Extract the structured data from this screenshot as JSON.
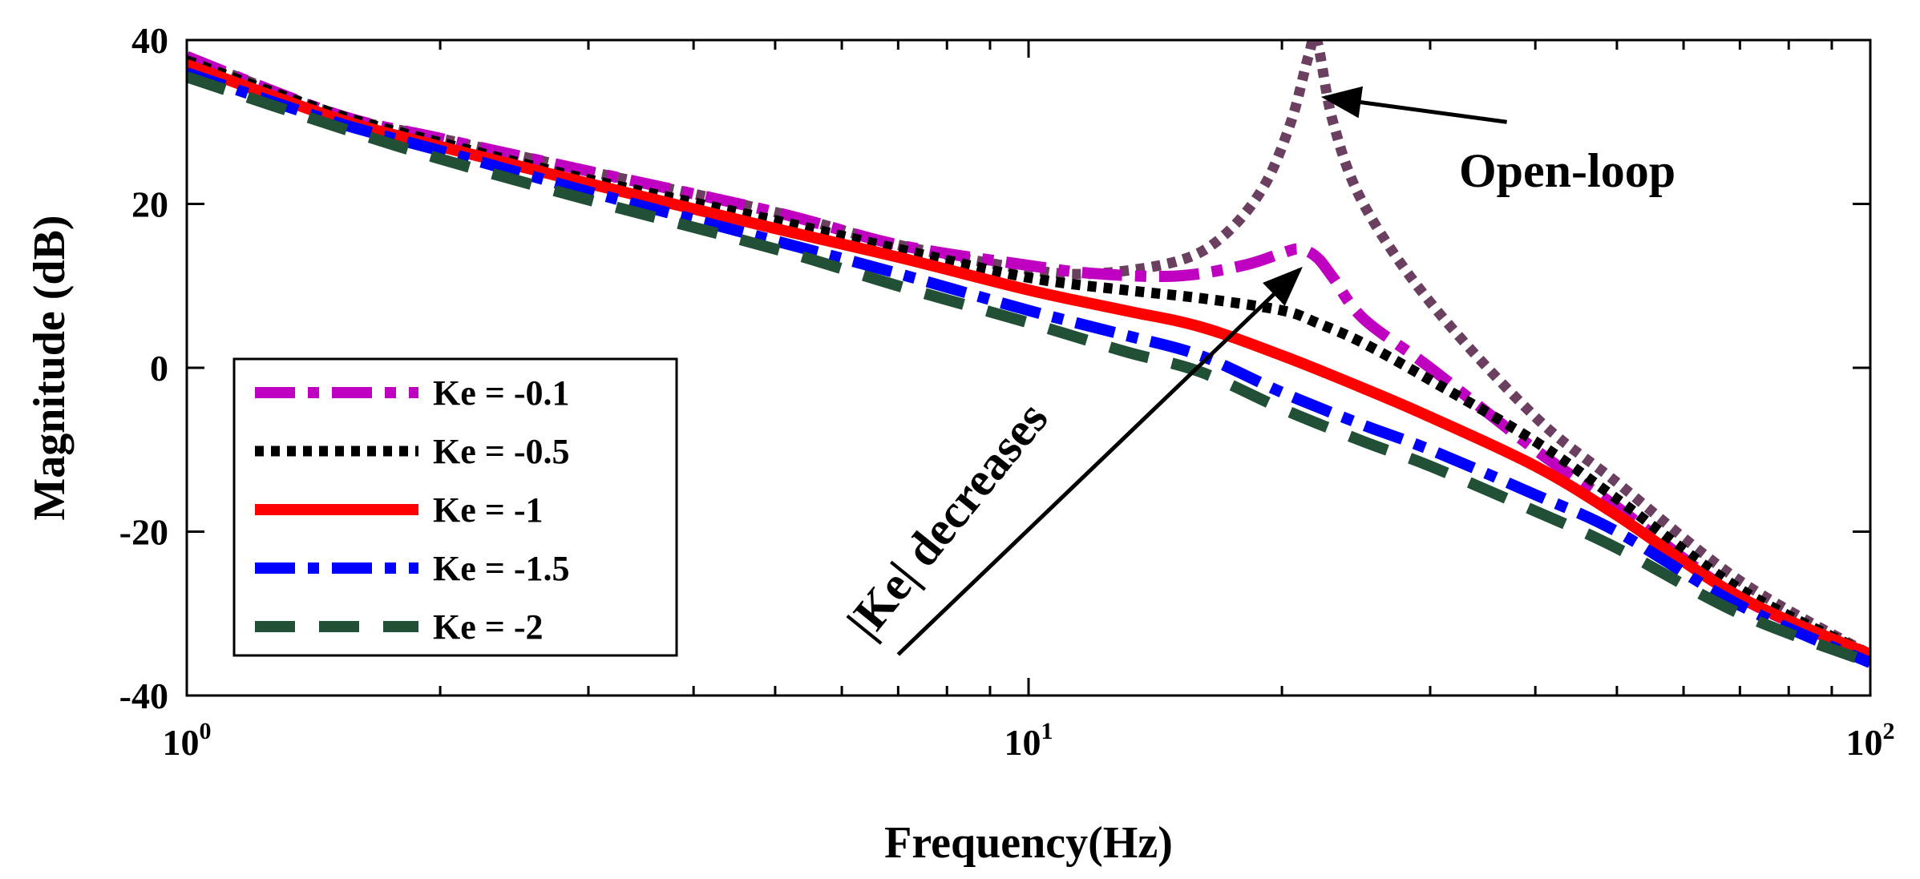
{
  "chart_data": {
    "type": "line",
    "xscale": "log",
    "xlabel": "Frequency(Hz)",
    "ylabel": "Magnitude (dB)",
    "xlim": [
      1,
      100
    ],
    "ylim": [
      -40,
      40
    ],
    "x_ticks": [
      {
        "value": 1,
        "base": "10",
        "exp": "0"
      },
      {
        "value": 10,
        "base": "10",
        "exp": "1"
      },
      {
        "value": 100,
        "base": "10",
        "exp": "2"
      }
    ],
    "y_ticks": [
      {
        "value": 40,
        "label": "40"
      },
      {
        "value": 20,
        "label": "20"
      },
      {
        "value": 0,
        "label": "0"
      },
      {
        "value": -20,
        "label": "-20"
      },
      {
        "value": -40,
        "label": "-40"
      }
    ],
    "series": [
      {
        "name": "Open-loop",
        "in_legend": false,
        "color": "#6b3f5f",
        "style": "dotted",
        "x": [
          1,
          1.5,
          2,
          3,
          5,
          7,
          10,
          12,
          15,
          17,
          19,
          20.5,
          21.5,
          22,
          23,
          25,
          30,
          40,
          50,
          70,
          100
        ],
        "y": [
          38,
          31,
          28,
          24,
          19,
          15,
          12,
          11.5,
          13,
          16,
          22,
          30,
          38,
          40,
          30,
          20,
          8,
          -6,
          -14,
          -26,
          -35
        ]
      },
      {
        "name": "Ke = -0.1",
        "in_legend": true,
        "color": "#c000c0",
        "style": "dashdot",
        "x": [
          1,
          1.5,
          2,
          3,
          5,
          7,
          10,
          12,
          15,
          18,
          20,
          21,
          22,
          23,
          25,
          30,
          40,
          50,
          70,
          100
        ],
        "y": [
          38,
          31,
          28,
          24,
          19,
          15,
          12.5,
          11.5,
          11.2,
          12.5,
          14,
          14.5,
          13.5,
          11,
          6,
          0,
          -10,
          -17,
          -28,
          -35
        ]
      },
      {
        "name": "Ke = -0.5",
        "in_legend": true,
        "color": "#000000",
        "style": "dotted",
        "x": [
          1,
          1.5,
          2,
          3,
          5,
          7,
          10,
          13,
          16,
          20,
          22,
          25,
          30,
          40,
          50,
          70,
          100
        ],
        "y": [
          37.5,
          31,
          27.5,
          23,
          18,
          14.5,
          11,
          9.5,
          8.5,
          7,
          5.5,
          3,
          -1.5,
          -9,
          -16,
          -27,
          -35
        ]
      },
      {
        "name": "Ke = -1",
        "in_legend": true,
        "color": "#ff0000",
        "style": "solid",
        "x": [
          1,
          1.5,
          2,
          3,
          5,
          7,
          10,
          13,
          16,
          20,
          25,
          30,
          40,
          50,
          70,
          100
        ],
        "y": [
          37,
          30.5,
          27,
          22.5,
          17,
          13.5,
          9.5,
          7,
          5,
          1.5,
          -2.5,
          -6,
          -12,
          -18,
          -28,
          -35
        ]
      },
      {
        "name": "Ke = -1.5",
        "in_legend": true,
        "color": "#0000ff",
        "style": "dashdot",
        "x": [
          1,
          1.5,
          2,
          3,
          5,
          7,
          10,
          13,
          16,
          20,
          25,
          30,
          40,
          50,
          70,
          100
        ],
        "y": [
          36,
          30,
          26.5,
          21.5,
          15.5,
          11.5,
          7,
          4,
          1.5,
          -3,
          -7,
          -10,
          -15.5,
          -20,
          -29,
          -36
        ]
      },
      {
        "name": "Ke = -2",
        "in_legend": true,
        "color": "#215036",
        "style": "dashed",
        "x": [
          1,
          1.5,
          2,
          3,
          5,
          7,
          10,
          13,
          16,
          20,
          25,
          30,
          40,
          50,
          70,
          100
        ],
        "y": [
          35.5,
          29.5,
          25.5,
          20.5,
          14.5,
          10,
          5.5,
          2,
          -0.5,
          -5,
          -9,
          -12,
          -17.5,
          -22,
          -30,
          -36
        ]
      }
    ],
    "annotations": [
      {
        "text": "Open-loop",
        "arrow_from": {
          "x": 37,
          "y": 30
        },
        "arrow_to": {
          "x": 22.5,
          "y": 33
        }
      },
      {
        "text": "|Ke| decreases",
        "arrow_from": {
          "x": 7,
          "y": -35
        },
        "arrow_to": {
          "x": 21,
          "y": 12
        }
      }
    ],
    "legend": {
      "location": "lower-left"
    }
  }
}
